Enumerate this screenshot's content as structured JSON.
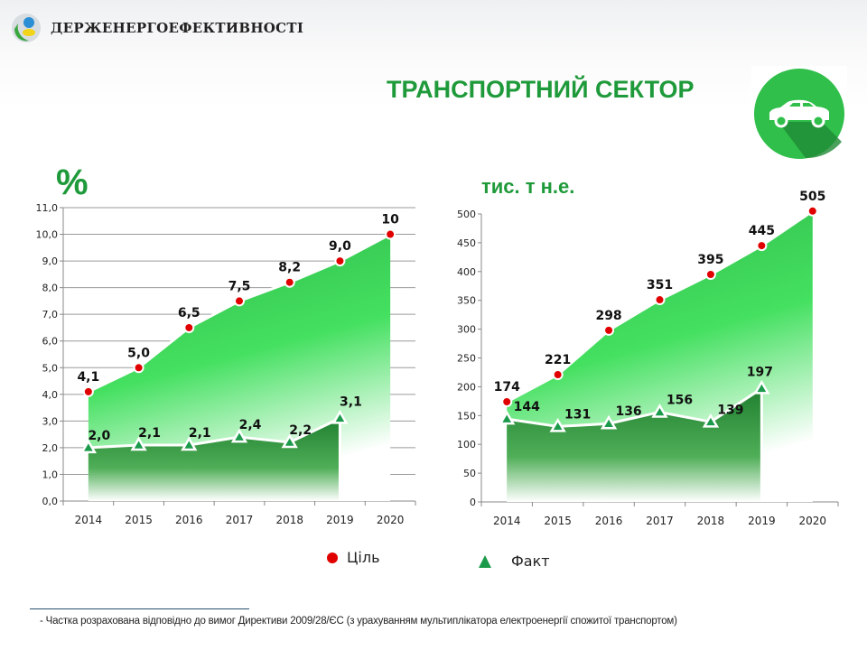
{
  "header": {
    "org_name": "ДЕРЖЕНЕРГОЕФЕКТИВНОСТІ",
    "title": "ТРАНСПОРТНИЙ СЕКТОР",
    "icon": "car-icon"
  },
  "colors": {
    "target": "#e00000",
    "actual": "#1a9a4a",
    "fill_target": "#34c84c",
    "fill_actual": "#1f8a32",
    "title": "#1f9a3a"
  },
  "legend": {
    "target": "Ціль",
    "actual": "Факт"
  },
  "footnote": "- Частка розрахована відповідно до вимог Директиви 2009/28/ЄС (з урахуванням мультиплікатора електроенергії спожитої транспортом)",
  "chart_data": [
    {
      "type": "area",
      "unit_label": "%",
      "categories": [
        "2014",
        "2015",
        "2016",
        "2017",
        "2018",
        "2019",
        "2020"
      ],
      "ylim": [
        0,
        11
      ],
      "yticks": [
        "0,0",
        "1,0",
        "2,0",
        "3,0",
        "4,0",
        "5,0",
        "6,0",
        "7,0",
        "8,0",
        "9,0",
        "10,0",
        "11,0"
      ],
      "grid": true,
      "series": [
        {
          "name": "Ціль",
          "values": [
            4.1,
            5.0,
            6.5,
            7.5,
            8.2,
            9.0,
            10
          ],
          "labels": [
            "4,1",
            "5,0",
            "6,5",
            "7,5",
            "8,2",
            "9,0",
            "10"
          ]
        },
        {
          "name": "Факт",
          "values": [
            2.0,
            2.1,
            2.1,
            2.4,
            2.2,
            3.1,
            null
          ],
          "labels": [
            "2,0",
            "2,1",
            "2,1",
            "2,4",
            "2,2",
            "3,1",
            ""
          ]
        }
      ]
    },
    {
      "type": "area",
      "unit_label": "тис. т н.е.",
      "categories": [
        "2014",
        "2015",
        "2016",
        "2017",
        "2018",
        "2019",
        "2020"
      ],
      "ylim": [
        0,
        500
      ],
      "yticks": [
        "0",
        "50",
        "100",
        "150",
        "200",
        "250",
        "300",
        "350",
        "400",
        "450",
        "500"
      ],
      "grid": false,
      "series": [
        {
          "name": "Ціль",
          "values": [
            174,
            221,
            298,
            351,
            395,
            445,
            505
          ],
          "labels": [
            "174",
            "221",
            "298",
            "351",
            "395",
            "445",
            "505"
          ]
        },
        {
          "name": "Факт",
          "values": [
            144,
            131,
            136,
            156,
            139,
            197,
            null
          ],
          "labels": [
            "144",
            "131",
            "136",
            "156",
            "139",
            "197",
            ""
          ]
        }
      ]
    }
  ]
}
